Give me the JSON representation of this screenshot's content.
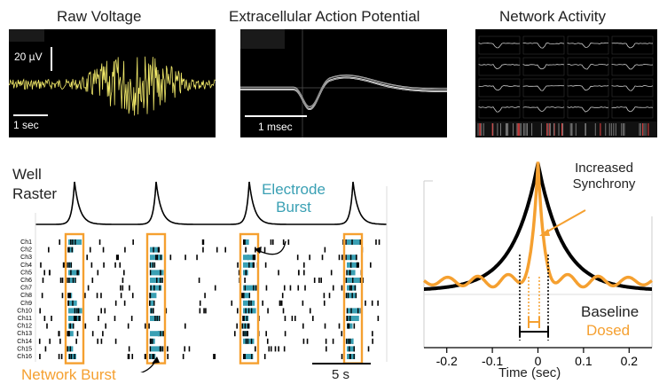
{
  "top_panels": {
    "raw": {
      "title": "Raw Voltage",
      "scale_v": "20 µV",
      "scale_t": "1 sec"
    },
    "eap": {
      "title": "Extracellular Action Potential",
      "scale_t": "1 msec"
    },
    "network": {
      "title": "Network Activity"
    }
  },
  "raster": {
    "heading": [
      "Well",
      "Raster"
    ],
    "electrode_burst": [
      "Electrode",
      "Burst"
    ],
    "network_burst": "Network Burst",
    "time_scale": "5 s",
    "channels": [
      "Ch1",
      "Ch2",
      "Ch3",
      "Ch4",
      "Ch5",
      "Ch6",
      "Ch7",
      "Ch8",
      "Ch9",
      "Ch10",
      "Ch11",
      "Ch12",
      "Ch13",
      "Ch14",
      "Ch15",
      "Ch16"
    ],
    "colors": {
      "burst": "#3aa0b4",
      "network": "#f5a030",
      "spike": "#000000"
    }
  },
  "synchrony": {
    "annotation": [
      "Increased",
      "Synchrony"
    ],
    "legend": {
      "baseline": "Baseline",
      "dosed": "Dosed"
    },
    "colors": {
      "baseline": "#000000",
      "dosed": "#f5a030"
    },
    "chart_data": {
      "type": "line",
      "xlabel": "Time (sec)",
      "xlim": [
        -0.25,
        0.25
      ],
      "x_ticks": [
        "-0.2",
        "-0.1",
        "0",
        "0.1",
        "0.2"
      ],
      "series": [
        {
          "name": "Baseline",
          "x": [
            -0.25,
            -0.2,
            -0.15,
            -0.1,
            -0.05,
            -0.02,
            0,
            0.02,
            0.05,
            0.1,
            0.15,
            0.2,
            0.25
          ],
          "y": [
            0.03,
            0.07,
            0.12,
            0.2,
            0.38,
            0.65,
            1.0,
            0.65,
            0.38,
            0.2,
            0.12,
            0.07,
            0.03
          ]
        },
        {
          "name": "Dosed",
          "x": [
            -0.25,
            -0.2,
            -0.15,
            -0.1,
            -0.05,
            -0.02,
            0,
            0.02,
            0.05,
            0.1,
            0.15,
            0.2,
            0.25
          ],
          "y": [
            0.08,
            0.12,
            0.13,
            0.16,
            0.2,
            0.4,
            0.95,
            0.4,
            0.2,
            0.16,
            0.13,
            0.12,
            0.08
          ]
        }
      ]
    }
  }
}
